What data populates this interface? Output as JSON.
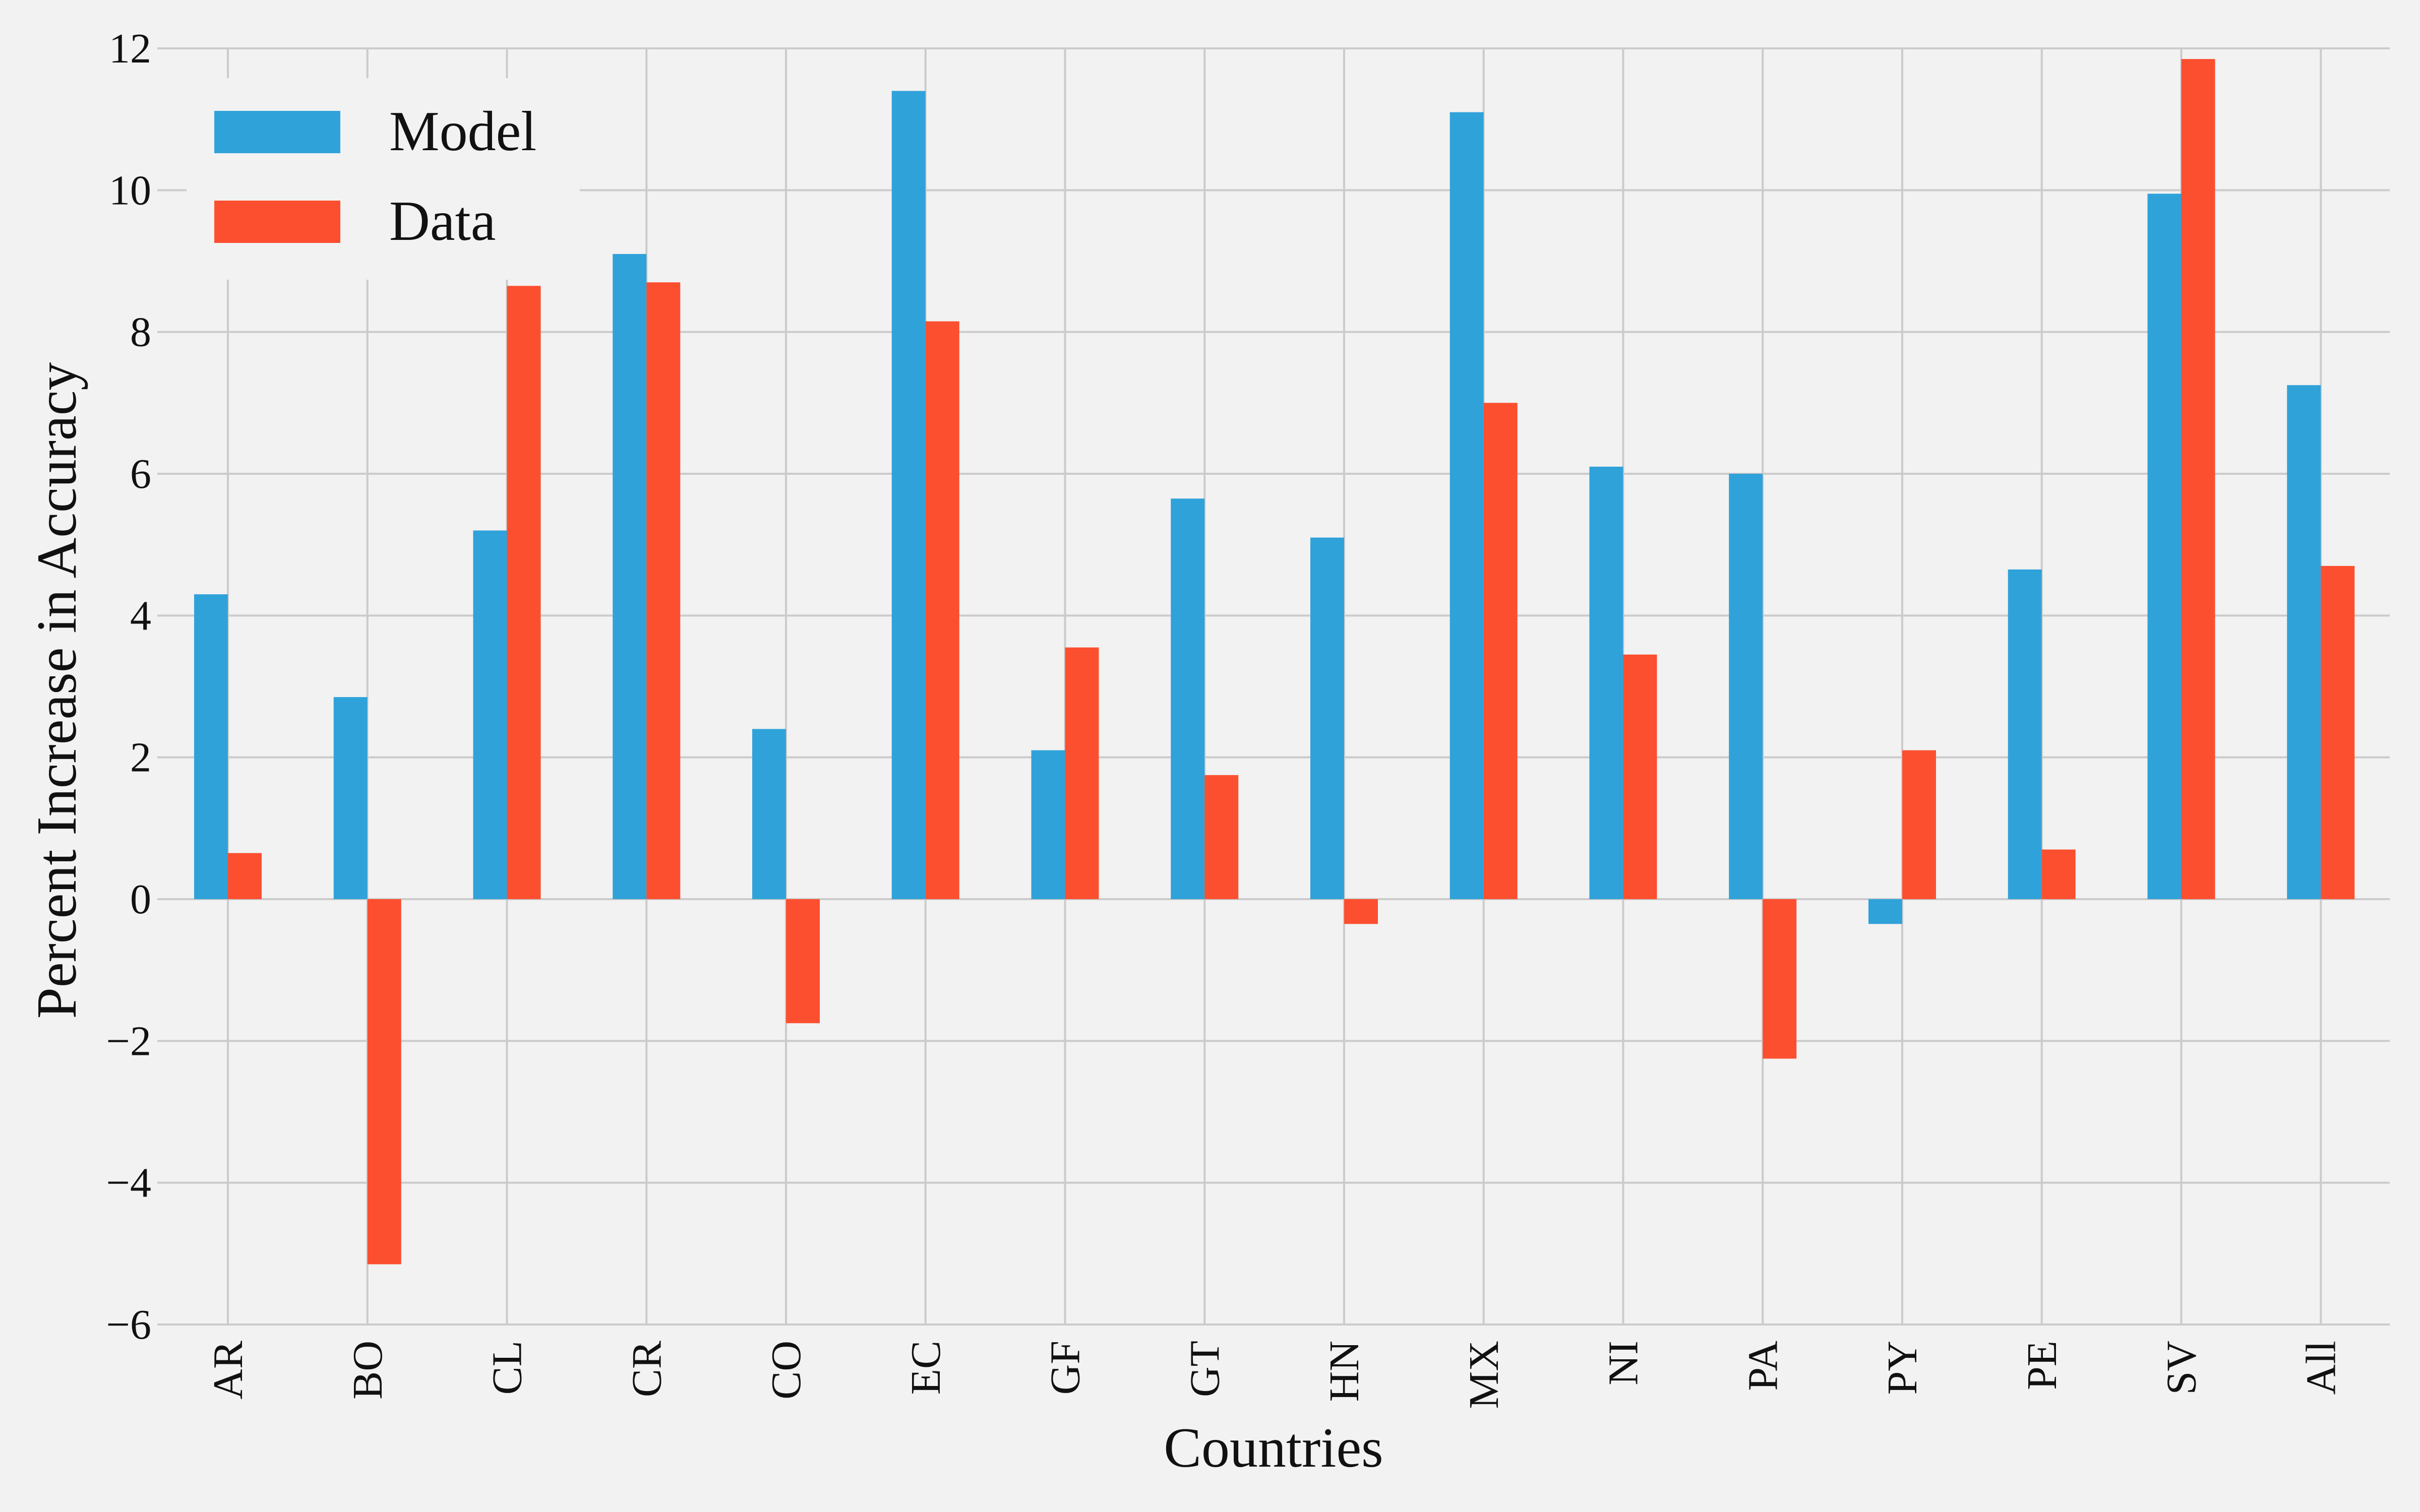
{
  "chart_data": {
    "type": "bar",
    "title": "",
    "xlabel": "Countries",
    "ylabel": "Percent Increase in Accuracy",
    "ylim": [
      -6,
      12
    ],
    "yticks": [
      -6,
      -4,
      -2,
      0,
      2,
      4,
      6,
      8,
      10,
      12
    ],
    "ytick_labels": [
      "−6",
      "−4",
      "−2",
      "0",
      "2",
      "4",
      "6",
      "8",
      "10",
      "12"
    ],
    "grid": true,
    "legend_position": "top-left",
    "categories": [
      "AR",
      "BO",
      "CL",
      "CR",
      "CO",
      "EC",
      "GF",
      "GT",
      "HN",
      "MX",
      "NI",
      "PA",
      "PY",
      "PE",
      "SV",
      "All"
    ],
    "series": [
      {
        "name": "Model",
        "color": "#30a2da",
        "values": [
          4.3,
          2.85,
          5.2,
          9.1,
          2.4,
          11.4,
          2.1,
          5.65,
          5.1,
          11.1,
          6.1,
          6.0,
          -0.35,
          4.65,
          9.95,
          7.25
        ]
      },
      {
        "name": "Data",
        "color": "#fc4f30",
        "values": [
          0.65,
          -5.15,
          8.65,
          8.7,
          -1.75,
          8.15,
          3.55,
          1.75,
          -0.35,
          7.0,
          3.45,
          -2.25,
          2.1,
          0.7,
          11.85,
          4.7
        ]
      }
    ]
  }
}
